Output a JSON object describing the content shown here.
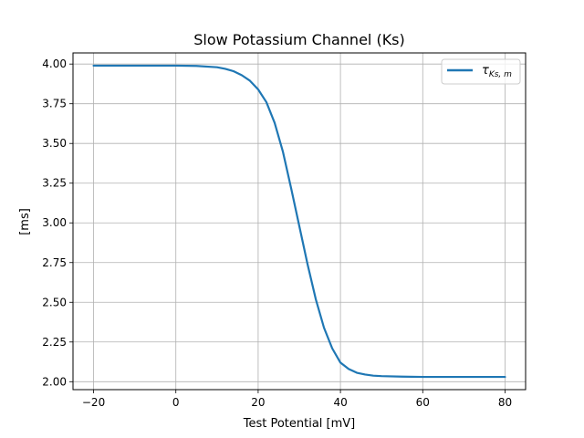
{
  "chart_data": {
    "type": "line",
    "title": "Slow Potassium Channel (Ks)",
    "xlabel": "Test Potential [mV]",
    "ylabel": "[ms]",
    "xlim": [
      -25,
      85
    ],
    "ylim": [
      1.95,
      4.07
    ],
    "xticks": [
      -20,
      0,
      20,
      40,
      60,
      80
    ],
    "xtick_labels": [
      "−20",
      "0",
      "20",
      "40",
      "60",
      "80"
    ],
    "yticks": [
      2.0,
      2.25,
      2.5,
      2.75,
      3.0,
      3.25,
      3.5,
      3.75,
      4.0
    ],
    "ytick_labels": [
      "2.00",
      "2.25",
      "2.50",
      "2.75",
      "3.00",
      "3.25",
      "3.50",
      "3.75",
      "4.00"
    ],
    "grid": true,
    "legend_position": "top-right",
    "series": [
      {
        "name": "τKs,m",
        "legend_main": "τ",
        "legend_sub": "Ks, m",
        "color": "#1f77b4",
        "x": [
          -20,
          -15,
          -10,
          -5,
          0,
          5,
          10,
          12,
          14,
          16,
          18,
          20,
          22,
          24,
          26,
          28,
          30,
          32,
          34,
          36,
          38,
          40,
          42,
          44,
          46,
          48,
          50,
          55,
          60,
          65,
          70,
          75,
          80
        ],
        "y": [
          3.99,
          3.99,
          3.99,
          3.99,
          3.99,
          3.988,
          3.98,
          3.97,
          3.955,
          3.93,
          3.895,
          3.84,
          3.76,
          3.63,
          3.45,
          3.22,
          2.98,
          2.74,
          2.52,
          2.34,
          2.21,
          2.12,
          2.08,
          2.056,
          2.045,
          2.038,
          2.035,
          2.032,
          2.03,
          2.03,
          2.03,
          2.03,
          2.03
        ]
      }
    ]
  }
}
